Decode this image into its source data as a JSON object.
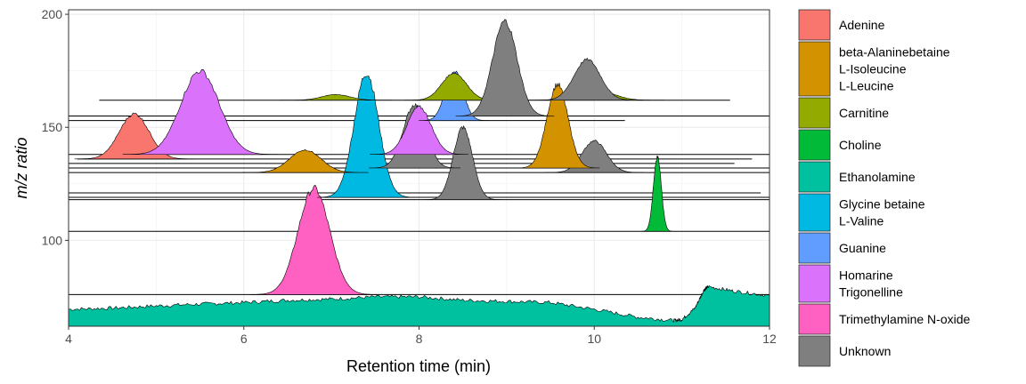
{
  "chart_data": {
    "type": "area",
    "title": "",
    "xlabel": "Retention time (min)",
    "ylabel": "m/z ratio",
    "xlim": [
      4,
      12
    ],
    "ylim": [
      62,
      202
    ],
    "x_ticks": [
      4,
      6,
      8,
      10,
      12
    ],
    "y_ticks": [
      100,
      150,
      200
    ],
    "grid": true,
    "legend_position": "right",
    "legend": [
      {
        "label": [
          "Adenine"
        ],
        "color": "#F8766D"
      },
      {
        "label": [
          "beta-Alaninebetaine",
          "L-Isoleucine",
          "L-Leucine"
        ],
        "color": "#D39200"
      },
      {
        "label": [
          "Carnitine"
        ],
        "color": "#93AA00"
      },
      {
        "label": [
          "Choline"
        ],
        "color": "#00BA38"
      },
      {
        "label": [
          "Ethanolamine"
        ],
        "color": "#00C19F"
      },
      {
        "label": [
          "Glycine betaine",
          "L-Valine"
        ],
        "color": "#00B9E3"
      },
      {
        "label": [
          "Guanine"
        ],
        "color": "#619CFF"
      },
      {
        "label": [
          "Homarine",
          "Trigonelline"
        ],
        "color": "#DB72FB"
      },
      {
        "label": [
          "Trimethylamine N-oxide"
        ],
        "color": "#FF61C3"
      },
      {
        "label": [
          "Unknown"
        ],
        "color": "#7F7F7F"
      }
    ],
    "baselines": [
      {
        "mz": 162.0,
        "x_start": 4.35,
        "x_end": 11.55
      },
      {
        "mz": 155.0,
        "x_start": 4.0,
        "x_end": 12.0
      },
      {
        "mz": 153.0,
        "x_start": 4.0,
        "x_end": 10.35
      },
      {
        "mz": 138.0,
        "x_start": 4.0,
        "x_end": 12.0
      },
      {
        "mz": 136.0,
        "x_start": 4.1,
        "x_end": 11.8
      },
      {
        "mz": 134.0,
        "x_start": 4.0,
        "x_end": 11.6
      },
      {
        "mz": 132.0,
        "x_start": 4.0,
        "x_end": 12.0
      },
      {
        "mz": 130.0,
        "x_start": 4.0,
        "x_end": 12.0
      },
      {
        "mz": 121.0,
        "x_start": 4.0,
        "x_end": 11.9
      },
      {
        "mz": 119.0,
        "x_start": 4.0,
        "x_end": 12.0
      },
      {
        "mz": 118.0,
        "x_start": 4.0,
        "x_end": 12.0
      },
      {
        "mz": 104.0,
        "x_start": 4.0,
        "x_end": 12.0
      },
      {
        "mz": 76.0,
        "x_start": 4.0,
        "x_end": 12.0
      }
    ],
    "series": [
      {
        "name": "Ethanolamine",
        "type": "profile",
        "color": "#00C19F",
        "baseline": 62.0,
        "x": [
          4.0,
          4.5,
          5.0,
          5.5,
          6.0,
          6.5,
          7.0,
          7.5,
          8.0,
          8.5,
          9.0,
          9.5,
          10.0,
          10.5,
          10.9,
          11.0,
          11.15,
          11.25,
          11.3,
          11.6,
          12.0
        ],
        "y": [
          69.5,
          70.0,
          71.0,
          71.8,
          72.5,
          73.5,
          74.0,
          75.0,
          75.0,
          73.5,
          73.0,
          72.5,
          69.5,
          66.0,
          64.5,
          65.0,
          70.0,
          78.0,
          79.5,
          77.5,
          75.5
        ]
      },
      {
        "name": "Trimethylamine N-oxide",
        "type": "peak",
        "color": "#FF61C3",
        "baseline": 76.0,
        "center": 6.8,
        "width": 0.18,
        "apex": 123.0
      },
      {
        "name": "Choline",
        "type": "peak",
        "color": "#00BA38",
        "baseline": 104.0,
        "center": 10.72,
        "width": 0.045,
        "apex": 137.0
      },
      {
        "name": "Glycine betaine, L-Valine",
        "type": "peak",
        "color": "#00B9E3",
        "baseline": 119.0,
        "center": 7.4,
        "width": 0.14,
        "apex": 174.0
      },
      {
        "name": "Unknown",
        "type": "peak",
        "color": "#7F7F7F",
        "baseline": 118.0,
        "center": 8.5,
        "width": 0.11,
        "apex": 150.0
      },
      {
        "name": "beta-Alaninebetaine, L-Isoleucine, L-Leucine",
        "type": "peak",
        "color": "#D39200",
        "baseline": 130.0,
        "center": 6.7,
        "width": 0.18,
        "apex": 140.0
      },
      {
        "name": "Unknown",
        "type": "peak",
        "color": "#7F7F7F",
        "baseline": 130.0,
        "center": 10.0,
        "width": 0.14,
        "apex": 144.0
      },
      {
        "name": "beta-Alaninebetaine, L-Isoleucine, L-Leucine",
        "type": "peak",
        "color": "#D39200",
        "baseline": 132.0,
        "center": 9.58,
        "width": 0.12,
        "apex": 169.0
      },
      {
        "name": "Unknown",
        "type": "peak",
        "color": "#7F7F7F",
        "baseline": 132.0,
        "center": 7.95,
        "width": 0.13,
        "apex": 160.0
      },
      {
        "name": "Adenine",
        "type": "peak",
        "color": "#F8766D",
        "baseline": 136.0,
        "center": 4.75,
        "width": 0.17,
        "apex": 156.0
      },
      {
        "name": "Homarine, Trigonelline",
        "type": "peak",
        "color": "#DB72FB",
        "baseline": 138.0,
        "center": 5.5,
        "width": 0.22,
        "apex": 175.0
      },
      {
        "name": "Homarine, Trigonelline",
        "type": "peak",
        "color": "#DB72FB",
        "baseline": 138.0,
        "center": 8.0,
        "width": 0.14,
        "apex": 159.0
      },
      {
        "name": "Guanine",
        "type": "peak",
        "color": "#619CFF",
        "baseline": 153.0,
        "center": 8.4,
        "width": 0.1,
        "apex": 175.0
      },
      {
        "name": "Carnitine",
        "type": "peak",
        "color": "#93AA00",
        "baseline": 162.0,
        "center": 7.05,
        "width": 0.16,
        "apex": 164.5
      },
      {
        "name": "Carnitine",
        "type": "peak",
        "color": "#93AA00",
        "baseline": 162.0,
        "center": 10.0,
        "width": 0.2,
        "apex": 167.0
      },
      {
        "name": "Unknown",
        "type": "peak",
        "color": "#7F7F7F",
        "baseline": 162.0,
        "center": 9.92,
        "width": 0.15,
        "apex": 180.0
      },
      {
        "name": "Carnitine",
        "type": "peak",
        "color": "#93AA00",
        "baseline": 162.0,
        "center": 8.4,
        "width": 0.14,
        "apex": 174.0
      },
      {
        "name": "Unknown",
        "type": "peak",
        "color": "#7F7F7F",
        "baseline": 155.0,
        "center": 8.98,
        "width": 0.14,
        "apex": 197.0
      }
    ]
  }
}
